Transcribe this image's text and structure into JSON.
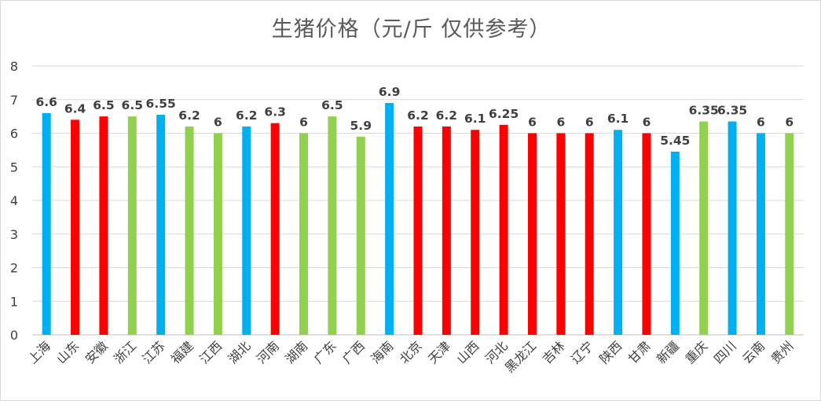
{
  "chart_data": {
    "type": "bar",
    "title": "生猪价格（元/斤 仅供参考）",
    "xlabel": "",
    "ylabel": "",
    "ylim": [
      0,
      8
    ],
    "yticks": [
      0,
      1,
      2,
      3,
      4,
      5,
      6,
      7,
      8
    ],
    "grid": true,
    "legend": "none",
    "categories": [
      "上海",
      "山东",
      "安徽",
      "浙江",
      "江苏",
      "福建",
      "江西",
      "湖北",
      "河南",
      "湖南",
      "广东",
      "广西",
      "海南",
      "北京",
      "天津",
      "山西",
      "河北",
      "黑龙江",
      "吉林",
      "辽宁",
      "陕西",
      "甘肃",
      "新疆",
      "重庆",
      "四川",
      "云南",
      "贵州"
    ],
    "values": [
      6.6,
      6.4,
      6.5,
      6.5,
      6.55,
      6.2,
      6,
      6.2,
      6.3,
      6,
      6.5,
      5.9,
      6.9,
      6.2,
      6.2,
      6.1,
      6.25,
      6,
      6,
      6,
      6.1,
      6,
      5.45,
      6.35,
      6.35,
      6,
      6
    ],
    "value_labels": [
      "6.6",
      "6.4",
      "6.5",
      "6.5",
      "6.55",
      "6.2",
      "6",
      "6.2",
      "6.3",
      "6",
      "6.5",
      "5.9",
      "6.9",
      "6.2",
      "6.2",
      "6.1",
      "6.25",
      "6",
      "6",
      "6",
      "6.1",
      "6",
      "5.45",
      "6.35",
      "6.35",
      "6",
      "6"
    ],
    "bar_colors": [
      "#00b0f0",
      "#ff0000",
      "#ff0000",
      "#92d050",
      "#00b0f0",
      "#92d050",
      "#92d050",
      "#00b0f0",
      "#ff0000",
      "#92d050",
      "#92d050",
      "#92d050",
      "#00b0f0",
      "#ff0000",
      "#ff0000",
      "#ff0000",
      "#ff0000",
      "#ff0000",
      "#ff0000",
      "#ff0000",
      "#00b0f0",
      "#ff0000",
      "#00b0f0",
      "#92d050",
      "#00b0f0",
      "#00b0f0",
      "#92d050"
    ]
  }
}
